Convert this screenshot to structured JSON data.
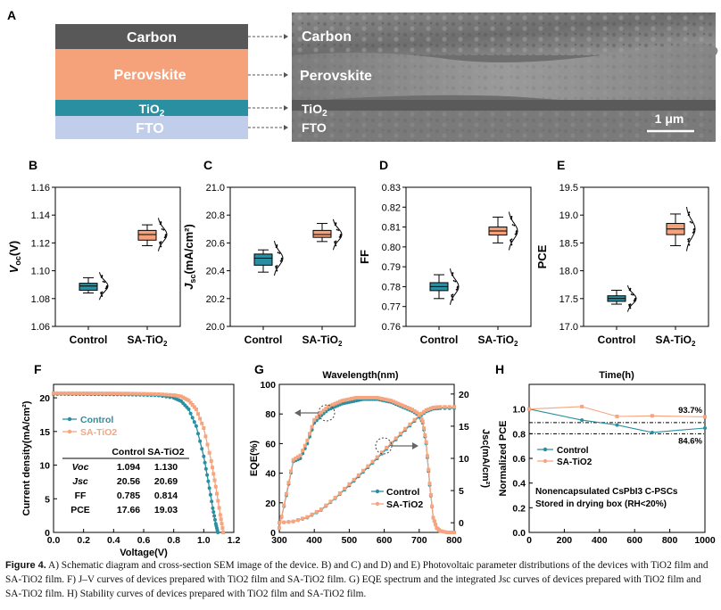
{
  "panelA": {
    "letter": "A",
    "layers": [
      {
        "label": "Carbon",
        "color": "#585858"
      },
      {
        "label": "Perovskite",
        "color": "#f5a27a"
      },
      {
        "label": "TiO",
        "sub": "2",
        "color": "#2a8fa0"
      },
      {
        "label": "FTO",
        "color": "#c0cdeb"
      }
    ],
    "sem": {
      "carbon": "Carbon",
      "perovskite": "Perovskite",
      "tio2": "TiO",
      "tio2_sub": "2",
      "fto": "FTO",
      "scale": "1 μm"
    }
  },
  "colors": {
    "control": "#2a8fa0",
    "sa": "#f5a27a",
    "control_line": "#2a8fa0",
    "sa_line": "#f7a57e"
  },
  "box_panels": [
    {
      "letter": "B",
      "ylabel": "V",
      "ysub": "oc",
      "yunit": "(V)",
      "ymin": 1.06,
      "ymax": 1.16,
      "ticks": [
        "1.06",
        "1.08",
        "1.10",
        "1.12",
        "1.14",
        "1.16"
      ],
      "tickvals": [
        1.06,
        1.08,
        1.1,
        1.12,
        1.14,
        1.16
      ],
      "cats": [
        "Control",
        "SA-TiO",
        "2"
      ],
      "control": {
        "min": 1.084,
        "q1": 1.086,
        "med": 1.089,
        "q3": 1.091,
        "max": 1.095
      },
      "sa": {
        "min": 1.118,
        "q1": 1.122,
        "med": 1.126,
        "q3": 1.129,
        "max": 1.133
      }
    },
    {
      "letter": "C",
      "ylabel": "J",
      "ysub": "sc",
      "yunit": "(mA/cm²)",
      "ymin": 20.0,
      "ymax": 21.0,
      "ticks": [
        "20.0",
        "20.2",
        "20.4",
        "20.6",
        "20.8",
        "21.0"
      ],
      "tickvals": [
        20.0,
        20.2,
        20.4,
        20.6,
        20.8,
        21.0
      ],
      "cats": [
        "Control",
        "SA-TiO",
        "2"
      ],
      "control": {
        "min": 20.39,
        "q1": 20.44,
        "med": 20.49,
        "q3": 20.52,
        "max": 20.55
      },
      "sa": {
        "min": 20.61,
        "q1": 20.64,
        "med": 20.66,
        "q3": 20.69,
        "max": 20.74
      }
    },
    {
      "letter": "D",
      "ylabel": "FF",
      "ysub": "",
      "yunit": "",
      "ymin": 0.76,
      "ymax": 0.83,
      "ticks": [
        "0.76",
        "0.77",
        "0.78",
        "0.79",
        "0.80",
        "0.81",
        "0.82",
        "0.83"
      ],
      "tickvals": [
        0.76,
        0.77,
        0.78,
        0.79,
        0.8,
        0.81,
        0.82,
        0.83
      ],
      "cats": [
        "Control",
        "SA-TiO",
        "2"
      ],
      "control": {
        "min": 0.774,
        "q1": 0.778,
        "med": 0.78,
        "q3": 0.782,
        "max": 0.786
      },
      "sa": {
        "min": 0.802,
        "q1": 0.806,
        "med": 0.808,
        "q3": 0.81,
        "max": 0.815
      }
    },
    {
      "letter": "E",
      "ylabel": "PCE",
      "ysub": "",
      "yunit": "",
      "ymin": 17.0,
      "ymax": 19.5,
      "ticks": [
        "17.0",
        "17.5",
        "18.0",
        "18.5",
        "19.0",
        "19.5"
      ],
      "tickvals": [
        17.0,
        17.5,
        18.0,
        18.5,
        19.0,
        19.5
      ],
      "cats": [
        "Control",
        "SA-TiO",
        "2"
      ],
      "control": {
        "min": 17.4,
        "q1": 17.45,
        "med": 17.5,
        "q3": 17.55,
        "max": 17.65
      },
      "sa": {
        "min": 18.45,
        "q1": 18.65,
        "med": 18.75,
        "q3": 18.85,
        "max": 19.02
      }
    }
  ],
  "chart_data": [
    {
      "panel": "F",
      "type": "line",
      "xlabel": "Voltage(V)",
      "ylabel": "Current density(mA/cm²)",
      "xlim": [
        0.0,
        1.2
      ],
      "ylim": [
        0,
        22
      ],
      "xticks": [
        "0.0",
        "0.2",
        "0.4",
        "0.6",
        "0.8",
        "1.0",
        "1.2"
      ],
      "yticks": [
        "0",
        "5",
        "10",
        "15",
        "20"
      ],
      "legend": [
        "Control",
        "SA-TiO2"
      ],
      "table": {
        "headers": [
          "",
          "Control",
          "SA-TiO2"
        ],
        "rows": [
          [
            "Voc",
            "1.094",
            "1.130"
          ],
          [
            "Jsc",
            "20.56",
            "20.69"
          ],
          [
            "FF",
            "0.785",
            "0.814"
          ],
          [
            "PCE",
            "17.66",
            "19.03"
          ]
        ]
      },
      "series": [
        {
          "name": "Control",
          "x": [
            0,
            0.1,
            0.2,
            0.3,
            0.4,
            0.5,
            0.6,
            0.7,
            0.8,
            0.85,
            0.9,
            0.95,
            1.0,
            1.03,
            1.06,
            1.08,
            1.094
          ],
          "y": [
            20.56,
            20.55,
            20.54,
            20.52,
            20.5,
            20.47,
            20.43,
            20.35,
            20.0,
            19.5,
            18.3,
            15.8,
            11.3,
            7.6,
            3.6,
            1.3,
            0
          ]
        },
        {
          "name": "SA-TiO2",
          "x": [
            0,
            0.1,
            0.2,
            0.3,
            0.4,
            0.5,
            0.6,
            0.7,
            0.8,
            0.85,
            0.9,
            0.95,
            1.0,
            1.05,
            1.08,
            1.11,
            1.13
          ],
          "y": [
            20.69,
            20.69,
            20.68,
            20.67,
            20.66,
            20.64,
            20.6,
            20.55,
            20.4,
            20.2,
            19.6,
            18.3,
            15.5,
            10.6,
            6.8,
            2.6,
            0
          ]
        }
      ]
    },
    {
      "panel": "G",
      "type": "line",
      "xlabel": "Wavelength(nm)",
      "ylabel": "EQE(%)",
      "y2label": "Jsc(mA/cm²)",
      "xlim": [
        300,
        800
      ],
      "ylim": [
        0,
        100
      ],
      "y2lim": [
        -1.5,
        21.5
      ],
      "xticks": [
        "300",
        "400",
        "500",
        "600",
        "700",
        "800"
      ],
      "yticks": [
        "0",
        "20",
        "40",
        "60",
        "80",
        "100"
      ],
      "y2ticks": [
        "0",
        "5",
        "10",
        "15",
        "20"
      ],
      "legend": [
        "Control",
        "SA-TiO2"
      ],
      "series": [
        {
          "name": "Control EQE",
          "x": [
            300,
            320,
            340,
            360,
            380,
            400,
            420,
            440,
            460,
            480,
            500,
            520,
            540,
            560,
            580,
            600,
            620,
            640,
            660,
            680,
            700,
            710,
            720,
            730,
            740,
            750,
            760,
            780,
            800
          ],
          "y": [
            3,
            25,
            48,
            50,
            60,
            74,
            79,
            83,
            85,
            87,
            88,
            89,
            90,
            90,
            90,
            89,
            88,
            86,
            84,
            82,
            79,
            74,
            60,
            32,
            10,
            3,
            1,
            0,
            0
          ]
        },
        {
          "name": "SA-TiO2 EQE",
          "x": [
            300,
            320,
            340,
            360,
            380,
            400,
            420,
            440,
            460,
            480,
            500,
            520,
            540,
            560,
            580,
            600,
            620,
            640,
            660,
            680,
            700,
            710,
            720,
            730,
            740,
            750,
            760,
            780,
            800
          ],
          "y": [
            3,
            26,
            49,
            52,
            62,
            76,
            81,
            85,
            87,
            89,
            90,
            91,
            91,
            91,
            91,
            90,
            89,
            87,
            85,
            83,
            80,
            75,
            61,
            33,
            10,
            3,
            1,
            0,
            0
          ]
        },
        {
          "name": "Control Jsc",
          "x": [
            300,
            340,
            380,
            420,
            460,
            500,
            540,
            580,
            620,
            660,
            700,
            720,
            740,
            760,
            800
          ],
          "y": [
            0,
            0.2,
            0.8,
            2.0,
            3.8,
            5.8,
            7.9,
            10.0,
            12.2,
            14.4,
            16.5,
            17.3,
            17.7,
            17.8,
            17.8
          ]
        },
        {
          "name": "SA-TiO2 Jsc",
          "x": [
            300,
            340,
            380,
            420,
            460,
            500,
            540,
            580,
            620,
            660,
            700,
            720,
            740,
            760,
            800
          ],
          "y": [
            0,
            0.2,
            0.9,
            2.1,
            3.9,
            6.0,
            8.1,
            10.2,
            12.4,
            14.6,
            16.7,
            17.5,
            17.9,
            18.0,
            18.0
          ]
        }
      ]
    },
    {
      "panel": "H",
      "type": "line",
      "xlabel": "Time(h)",
      "ylabel": "Normalized PCE",
      "xlim": [
        0,
        1000
      ],
      "ylim": [
        0.0,
        1.2
      ],
      "xticks": [
        "0",
        "200",
        "400",
        "600",
        "800",
        "1000"
      ],
      "yticks": [
        "0.0",
        "0.2",
        "0.4",
        "0.6",
        "0.8",
        "1.0"
      ],
      "legend": [
        "Control",
        "SA-TiO2"
      ],
      "annotations": [
        "93.7%",
        "84.6%"
      ],
      "note": [
        "Nonencapsulated CsPbI3 C-PSCs",
        "Stored in drying box  (RH<20%)"
      ],
      "series": [
        {
          "name": "Control",
          "x": [
            0,
            300,
            500,
            700,
            1000
          ],
          "y": [
            1.0,
            0.91,
            0.87,
            0.81,
            0.846
          ]
        },
        {
          "name": "SA-TiO2",
          "x": [
            0,
            300,
            500,
            700,
            1000
          ],
          "y": [
            1.0,
            1.02,
            0.94,
            0.945,
            0.937
          ]
        }
      ]
    }
  ],
  "caption": {
    "label": "Figure 4.",
    "text": " A) Schematic diagram and cross-section SEM image of the device. B) and C) and D) and E) Photovoltaic parameter distributions of the devices with TiO2 film and SA-TiO2 film. F) J–V curves of devices prepared with TiO2 film and SA-TiO2 film. G) EQE spectrum and the integrated Jsc curves of devices prepared with TiO2 film and SA-TiO2 film. H) Stability curves of devices prepared with TiO2 film and SA-TiO2 film."
  }
}
